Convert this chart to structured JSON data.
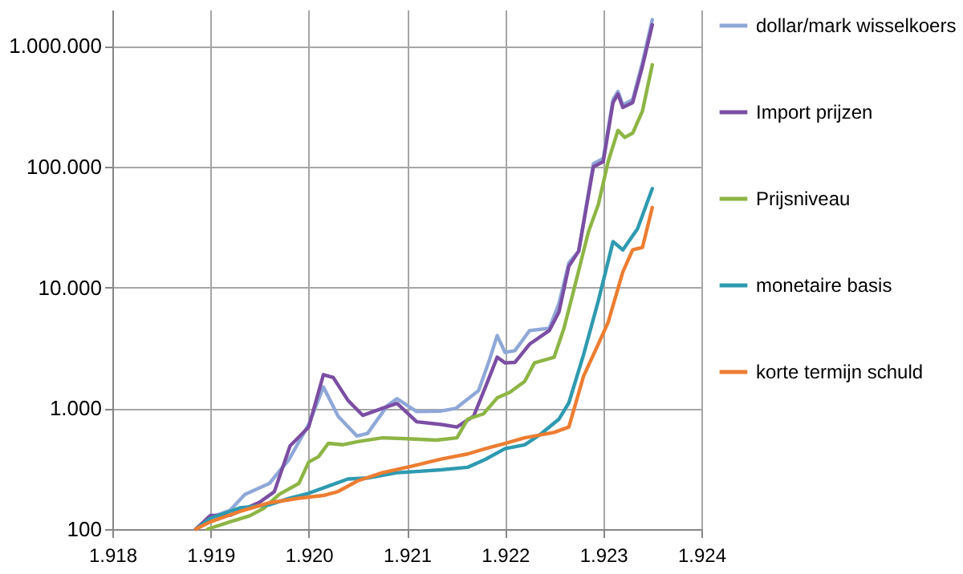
{
  "chart_data": {
    "type": "line",
    "log": "y",
    "grid": true,
    "legend": "right",
    "line_style": "solid",
    "marker": "none",
    "xlim": [
      1918,
      1924
    ],
    "ylim": [
      100,
      2000000
    ],
    "xticks": [
      {
        "value": 1918,
        "label": "1.918"
      },
      {
        "value": 1919,
        "label": "1.919"
      },
      {
        "value": 1920,
        "label": "1.920"
      },
      {
        "value": 1921,
        "label": "1.921"
      },
      {
        "value": 1922,
        "label": "1.922"
      },
      {
        "value": 1923,
        "label": "1.923"
      },
      {
        "value": 1924,
        "label": "1.924"
      }
    ],
    "yticks": [
      {
        "value": 100,
        "label": "100"
      },
      {
        "value": 1000,
        "label": "1.000"
      },
      {
        "value": 10000,
        "label": "10.000"
      },
      {
        "value": 100000,
        "label": "100.000"
      },
      {
        "value": 1000000,
        "label": "1.000.000"
      }
    ],
    "series": [
      {
        "name": "dollar/mark wisselkoers",
        "color": "#8fa8d8",
        "x": [
          1918.85,
          1919,
          1919.2,
          1919.35,
          1919.6,
          1919.8,
          1920,
          1920.15,
          1920.3,
          1920.49,
          1920.6,
          1920.8,
          1920.9,
          1921.1,
          1921.35,
          1921.5,
          1921.73,
          1921.84,
          1921.92,
          1922,
          1922.1,
          1922.25,
          1922.45,
          1922.55,
          1922.65,
          1922.75,
          1922.9,
          1923,
          1923.1,
          1923.15,
          1923.2,
          1923.3,
          1923.4,
          1923.5
        ],
        "values": [
          100,
          125,
          143,
          194,
          239,
          378,
          736,
          1500,
          860,
          590,
          620,
          1050,
          1200,
          940,
          950,
          1000,
          1400,
          2500,
          4000,
          2900,
          3000,
          4400,
          4600,
          7400,
          16000,
          20000,
          106000,
          117000,
          360000,
          420000,
          325000,
          360000,
          730000,
          1650000
        ]
      },
      {
        "name": "Import prijzen",
        "color": "#7b4ea3",
        "x": [
          1918.85,
          1919,
          1919.2,
          1919.5,
          1919.65,
          1919.81,
          1920,
          1920.15,
          1920.25,
          1920.4,
          1920.55,
          1920.75,
          1920.9,
          1921.1,
          1921.35,
          1921.51,
          1921.68,
          1921.8,
          1921.92,
          1922,
          1922.1,
          1922.25,
          1922.45,
          1922.55,
          1922.65,
          1922.75,
          1922.9,
          1923,
          1923.1,
          1923.15,
          1923.2,
          1923.3,
          1923.4,
          1923.5
        ],
        "values": [
          100,
          130,
          130,
          167,
          204,
          488,
          700,
          1900,
          1800,
          1165,
          875,
          1000,
          1100,
          773,
          735,
          700,
          860,
          1500,
          2650,
          2380,
          2400,
          3400,
          4400,
          6300,
          15000,
          20000,
          100000,
          110000,
          340000,
          400000,
          310000,
          340000,
          680000,
          1500000
        ]
      },
      {
        "name": "Prijsniveau",
        "color": "#8db545",
        "x": [
          1918.97,
          1919.2,
          1919.4,
          1919.55,
          1919.7,
          1919.9,
          1920,
          1920.1,
          1920.2,
          1920.35,
          1920.5,
          1920.75,
          1921,
          1921.3,
          1921.51,
          1921.62,
          1921.78,
          1921.92,
          1922.05,
          1922.2,
          1922.3,
          1922.5,
          1922.6,
          1922.7,
          1922.85,
          1922.95,
          1923.05,
          1923.15,
          1923.22,
          1923.3,
          1923.4,
          1923.5
        ],
        "values": [
          100,
          115,
          129,
          150,
          194,
          239,
          359,
          398,
          513,
          500,
          530,
          570,
          560,
          545,
          570,
          815,
          900,
          1220,
          1360,
          1670,
          2380,
          2650,
          4600,
          9500,
          29000,
          48500,
          110000,
          200000,
          175000,
          190000,
          290000,
          700000
        ]
      },
      {
        "name": "monetaire basis",
        "color": "#2e9ab0",
        "x": [
          1918.85,
          1919,
          1919.3,
          1919.6,
          1919.8,
          1920,
          1920.2,
          1920.4,
          1920.6,
          1920.9,
          1921.1,
          1921.35,
          1921.62,
          1921.8,
          1922,
          1922.2,
          1922.35,
          1922.55,
          1922.65,
          1922.8,
          1922.95,
          1923.1,
          1923.2,
          1923.35,
          1923.5
        ],
        "values": [
          100,
          123,
          150,
          159,
          180,
          198,
          227,
          260,
          265,
          293,
          300,
          310,
          325,
          378,
          464,
          498,
          600,
          815,
          1110,
          2780,
          7750,
          24000,
          20500,
          30700,
          66000
        ]
      },
      {
        "name": "korte termijn schuld",
        "color": "#ed7d31",
        "x": [
          1918.85,
          1919,
          1919.3,
          1919.6,
          1919.9,
          1920.15,
          1920.3,
          1920.5,
          1920.75,
          1921,
          1921.35,
          1921.62,
          1921.8,
          1922,
          1922.2,
          1922.5,
          1922.65,
          1922.8,
          1922.95,
          1923.05,
          1923.2,
          1923.3,
          1923.4,
          1923.5
        ],
        "values": [
          100,
          115,
          140,
          165,
          180,
          190,
          205,
          251,
          293,
          325,
          380,
          419,
          464,
          513,
          570,
          632,
          700,
          1850,
          3400,
          5150,
          13500,
          20500,
          21500,
          46000
        ]
      }
    ]
  }
}
